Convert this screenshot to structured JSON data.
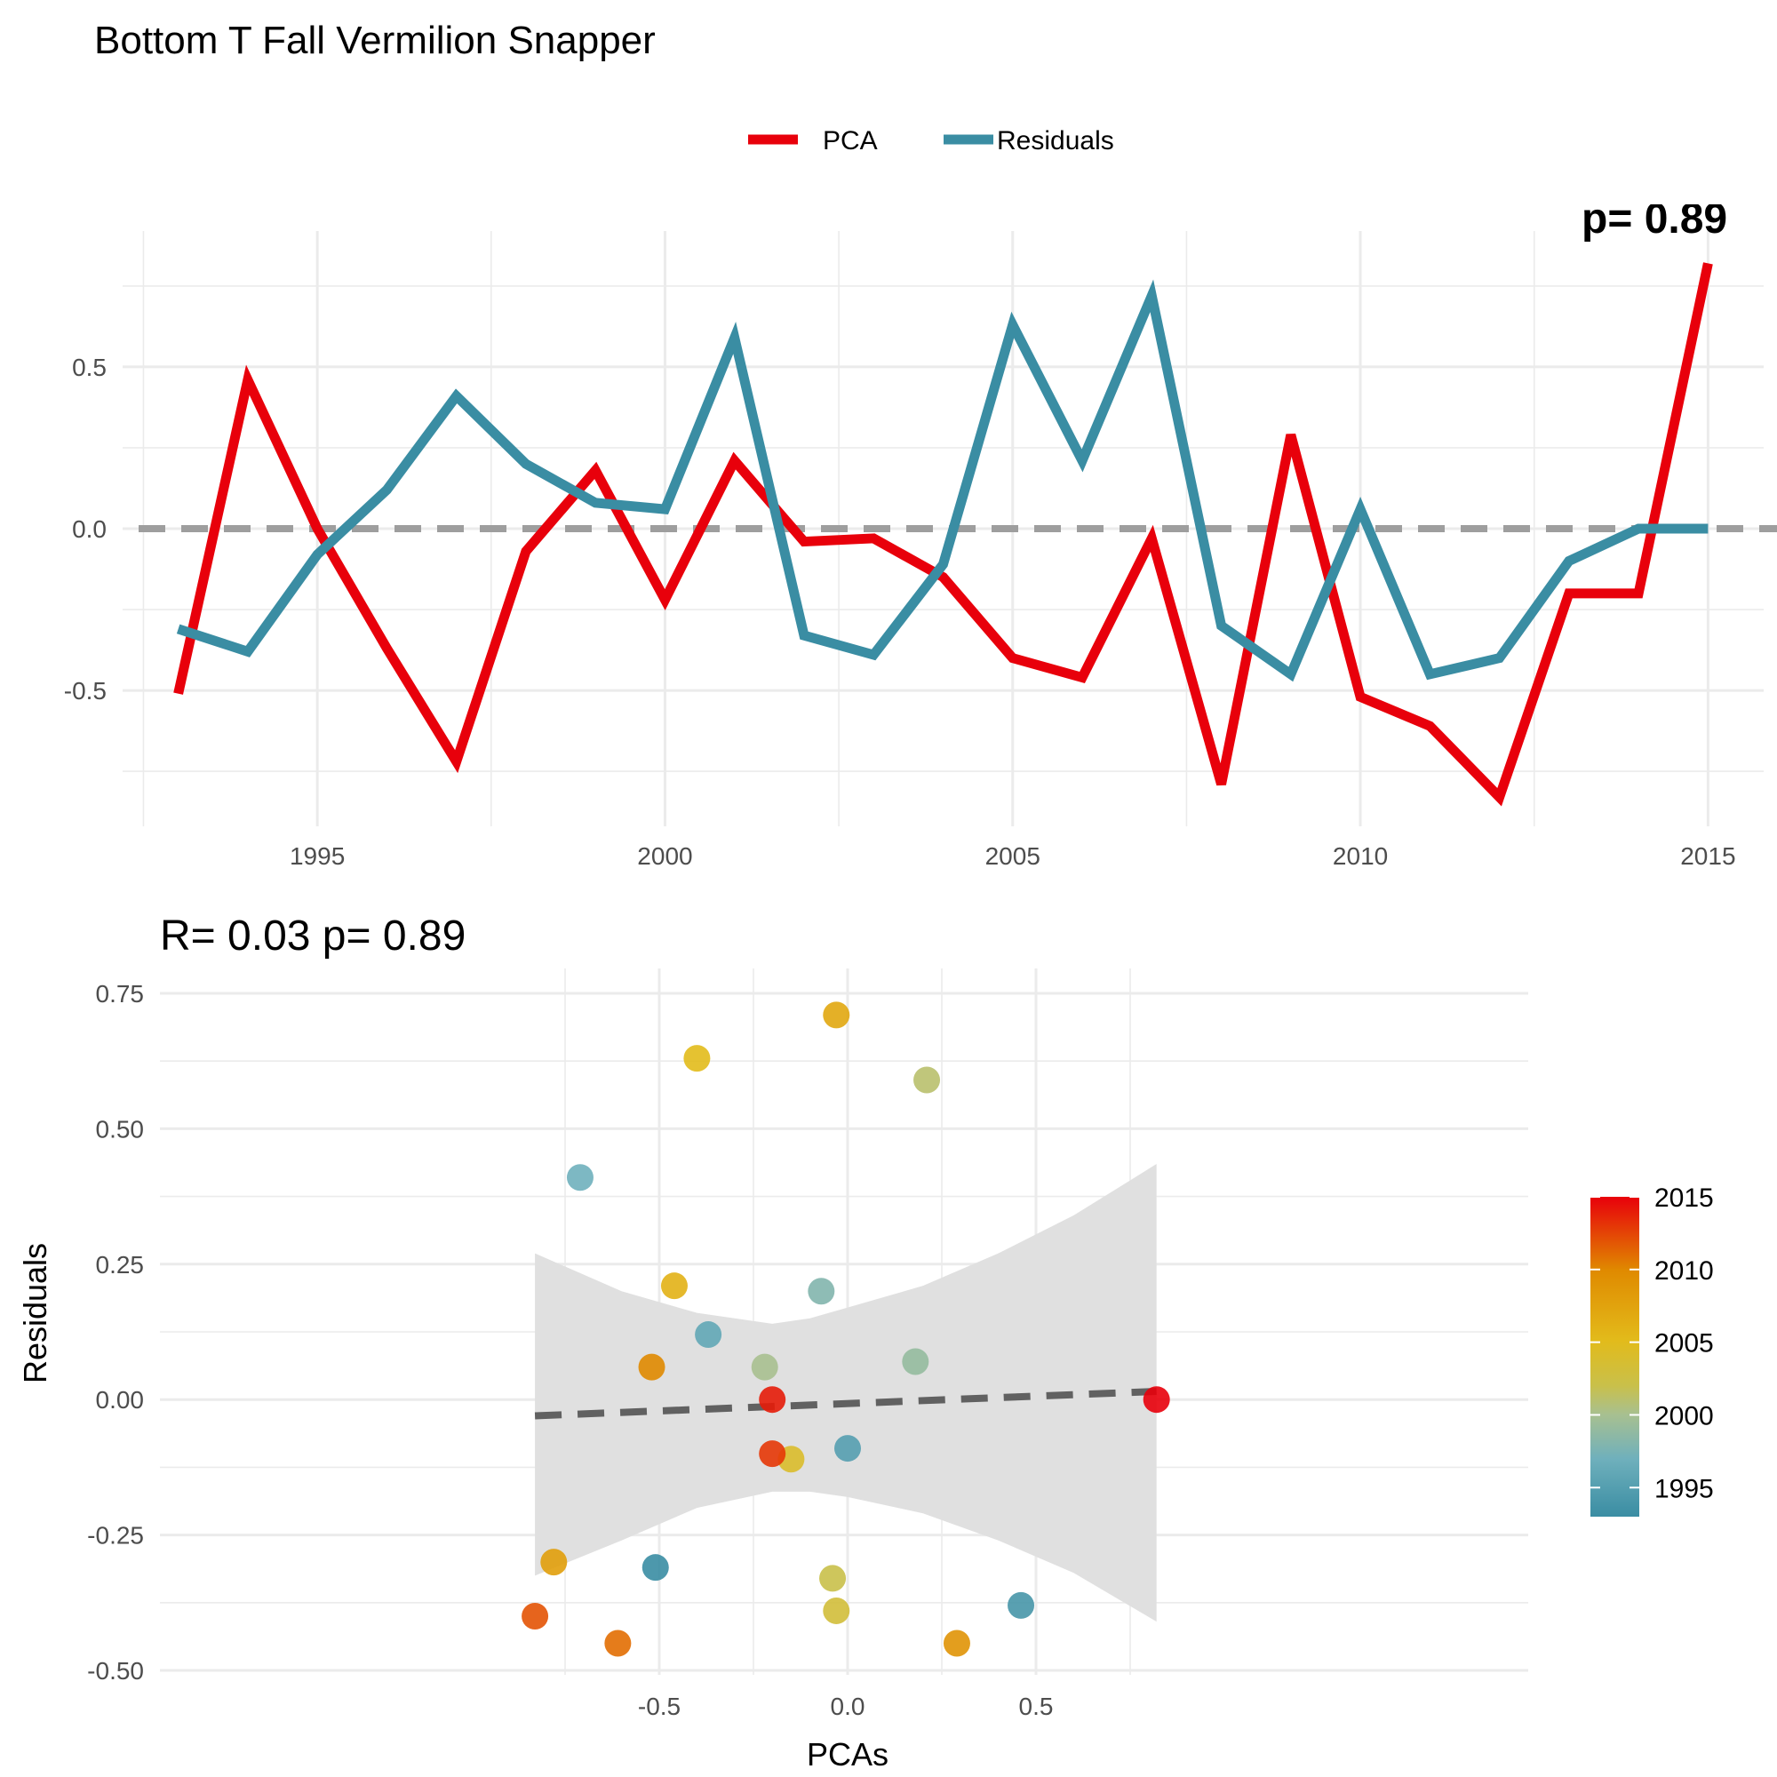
{
  "figure": {
    "title": "Bottom T Fall Vermilion Snapper"
  },
  "chart_data": [
    {
      "type": "line",
      "title": "",
      "xlabel": "",
      "ylabel": "",
      "x": [
        1993,
        1994,
        1995,
        1996,
        1997,
        1998,
        1999,
        2000,
        2001,
        2002,
        2003,
        2004,
        2005,
        2006,
        2007,
        2008,
        2009,
        2010,
        2011,
        2012,
        2013,
        2014,
        2015
      ],
      "series": [
        {
          "name": "PCA",
          "color": "#E8000B",
          "values": [
            -0.51,
            0.46,
            0.0,
            -0.37,
            -0.72,
            -0.07,
            0.18,
            -0.22,
            0.21,
            -0.04,
            -0.03,
            -0.15,
            -0.4,
            -0.46,
            -0.03,
            -0.79,
            0.29,
            -0.52,
            -0.61,
            -0.83,
            -0.2,
            -0.2,
            0.82
          ]
        },
        {
          "name": "Residuals",
          "color": "#3A8DA3",
          "values": [
            -0.31,
            -0.38,
            -0.08,
            0.12,
            0.41,
            0.2,
            0.08,
            0.06,
            0.59,
            -0.33,
            -0.39,
            -0.11,
            0.63,
            0.21,
            0.72,
            -0.3,
            -0.45,
            0.06,
            -0.45,
            -0.4,
            -0.1,
            0.0,
            0.0
          ]
        }
      ],
      "reference_line": {
        "y": 0,
        "style": "dashed",
        "color": "#9E9E9E"
      },
      "xlim": [
        1992.2,
        2015.8
      ],
      "ylim": [
        -0.92,
        0.92
      ],
      "x_ticks": [
        1995,
        2000,
        2005,
        2010,
        2015
      ],
      "y_ticks": [
        -0.5,
        0.0,
        0.5
      ],
      "x_tick_labels": [
        "1995",
        "2000",
        "2005",
        "2010",
        "2015"
      ],
      "y_tick_labels": [
        "-0.5",
        "0.0",
        "0.5"
      ],
      "legend_position": "top",
      "clipped_annotation": "p= 0.89",
      "grid": true
    },
    {
      "type": "scatter",
      "title": "R= 0.03  p= 0.89",
      "xlabel": "PCAs",
      "ylabel": "Residuals",
      "xlim": [
        -0.9,
        0.9
      ],
      "ylim": [
        -0.5,
        0.75
      ],
      "x_ticks": [
        -0.5,
        0.0,
        0.5
      ],
      "y_ticks": [
        -0.5,
        -0.25,
        0.0,
        0.25,
        0.5,
        0.75
      ],
      "x_tick_labels": [
        "-0.5",
        "0.0",
        "0.5"
      ],
      "y_tick_labels": [
        "-0.50",
        "-0.25",
        "0.00",
        "0.25",
        "0.50",
        "0.75"
      ],
      "points": [
        {
          "year": 1993,
          "x": -0.51,
          "y": -0.31
        },
        {
          "year": 1994,
          "x": 0.46,
          "y": -0.38
        },
        {
          "year": 1995,
          "x": 0.0,
          "y": -0.09
        },
        {
          "year": 1996,
          "x": -0.37,
          "y": 0.12
        },
        {
          "year": 1997,
          "x": -0.71,
          "y": 0.41
        },
        {
          "year": 1998,
          "x": -0.07,
          "y": 0.2
        },
        {
          "year": 1999,
          "x": 0.18,
          "y": 0.07
        },
        {
          "year": 2000,
          "x": -0.22,
          "y": 0.06
        },
        {
          "year": 2001,
          "x": 0.21,
          "y": 0.59
        },
        {
          "year": 2002,
          "x": -0.04,
          "y": -0.33
        },
        {
          "year": 2003,
          "x": -0.03,
          "y": -0.39
        },
        {
          "year": 2004,
          "x": -0.15,
          "y": -0.11
        },
        {
          "year": 2005,
          "x": -0.4,
          "y": 0.63
        },
        {
          "year": 2006,
          "x": -0.46,
          "y": 0.21
        },
        {
          "year": 2007,
          "x": -0.03,
          "y": 0.71
        },
        {
          "year": 2008,
          "x": -0.78,
          "y": -0.3
        },
        {
          "year": 2009,
          "x": 0.29,
          "y": -0.45
        },
        {
          "year": 2010,
          "x": -0.52,
          "y": 0.06
        },
        {
          "year": 2011,
          "x": -0.61,
          "y": -0.45
        },
        {
          "year": 2012,
          "x": -0.83,
          "y": -0.4
        },
        {
          "year": 2013,
          "x": -0.2,
          "y": -0.1
        },
        {
          "year": 2014,
          "x": -0.2,
          "y": 0.0
        },
        {
          "year": 2015,
          "x": 0.82,
          "y": 0.0
        }
      ],
      "fit_line": {
        "x": [
          -0.83,
          0.82
        ],
        "y": [
          -0.03,
          0.015
        ],
        "style": "dashed",
        "color": "#616161"
      },
      "confidence_band": {
        "x": [
          -0.83,
          -0.6,
          -0.4,
          -0.2,
          -0.1,
          0.0,
          0.2,
          0.4,
          0.6,
          0.82
        ],
        "upper": [
          0.27,
          0.2,
          0.16,
          0.14,
          0.15,
          0.17,
          0.21,
          0.27,
          0.34,
          0.435
        ],
        "lower": [
          -0.325,
          -0.26,
          -0.2,
          -0.17,
          -0.17,
          -0.18,
          -0.21,
          -0.26,
          -0.32,
          -0.41
        ]
      },
      "colorbar": {
        "label": "",
        "min_year": 1993,
        "max_year": 2015,
        "ticks": [
          1995,
          2000,
          2005,
          2010,
          2015
        ],
        "tick_labels": [
          "1995",
          "2000",
          "2005",
          "2010",
          "2015"
        ],
        "gradient": [
          {
            "year": 1993,
            "color": "#3A8DA3"
          },
          {
            "year": 1997,
            "color": "#6FB0BC"
          },
          {
            "year": 2000,
            "color": "#A8C090"
          },
          {
            "year": 2002,
            "color": "#C9C04A"
          },
          {
            "year": 2005,
            "color": "#E2BB1B"
          },
          {
            "year": 2010,
            "color": "#E08A00"
          },
          {
            "year": 2015,
            "color": "#E8000B"
          }
        ]
      },
      "grid": true
    }
  ]
}
